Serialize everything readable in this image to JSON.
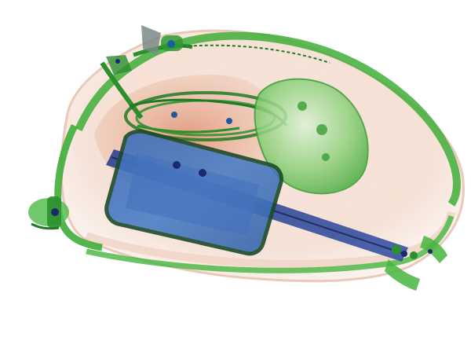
{
  "image": {
    "kind": "x-ray baggage scan",
    "subject": "handbag",
    "colors": {
      "background": "#ffffff",
      "organic": "#e8b49a",
      "organic_dense": "#d9754e",
      "inorganic": "#3fae3a",
      "inorganic_dark": "#1f7a24",
      "metal": "#2c3f9a",
      "metal_dark": "#1b2a6c"
    },
    "objects": [
      "bag-shell",
      "bag-handle-strap",
      "strap-buckle",
      "coiled-cable",
      "round-container",
      "rectangular-case",
      "long-bar",
      "pull-tab"
    ]
  }
}
